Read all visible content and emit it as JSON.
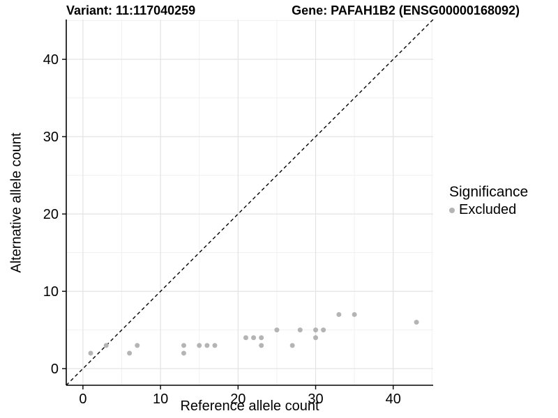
{
  "chart_data": {
    "type": "scatter",
    "title_left": "Variant: 11:117040259",
    "title_right": "Gene: PAFAH1B2 (ENSG00000168092)",
    "xlabel": "Reference allele count",
    "ylabel": "Alternative allele count",
    "xlim": [
      -2.15,
      45.15
    ],
    "ylim": [
      -2.15,
      45.15
    ],
    "x_major_ticks": [
      0,
      10,
      20,
      30,
      40
    ],
    "x_minor_ticks": [
      5,
      15,
      25,
      35,
      45
    ],
    "y_major_ticks": [
      0,
      10,
      20,
      30,
      40
    ],
    "y_minor_ticks": [
      5,
      15,
      25,
      35,
      45
    ],
    "grid": true,
    "identity_line": {
      "type": "y=x",
      "style": "dashed",
      "color": "#000000"
    },
    "series": [
      {
        "name": "Excluded",
        "color": "#b4b4b4",
        "points": [
          [
            1,
            2
          ],
          [
            3,
            3
          ],
          [
            6,
            2
          ],
          [
            7,
            3
          ],
          [
            13,
            2
          ],
          [
            13,
            3
          ],
          [
            15,
            3
          ],
          [
            16,
            3
          ],
          [
            17,
            3
          ],
          [
            21,
            4
          ],
          [
            22,
            4
          ],
          [
            23,
            3
          ],
          [
            23,
            4
          ],
          [
            25,
            5
          ],
          [
            27,
            3
          ],
          [
            28,
            5
          ],
          [
            30,
            4
          ],
          [
            30,
            5
          ],
          [
            31,
            5
          ],
          [
            33,
            7
          ],
          [
            35,
            7
          ],
          [
            43,
            6
          ]
        ]
      }
    ],
    "legend": {
      "title": "Significance",
      "position": "right",
      "items": [
        {
          "label": "Excluded",
          "color": "#b4b4b4"
        }
      ]
    }
  },
  "colors": {
    "background": "#ffffff",
    "point": "#b4b4b4",
    "grid_major": "#e3e3e3",
    "grid_minor": "#f1f1f1",
    "axis": "#000000",
    "text": "#000000"
  }
}
